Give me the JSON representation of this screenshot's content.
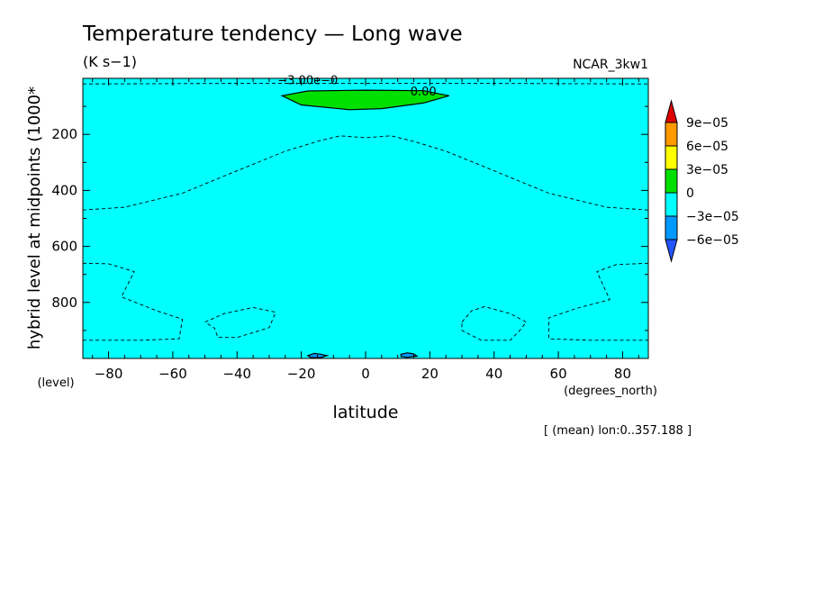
{
  "chart_data": {
    "type": "heatmap",
    "title": "Temperature tendency — Long wave",
    "units": "(K s−1)",
    "dataset": "NCAR_3kw1",
    "xlabel": "latitude",
    "x_units": "(degrees_north)",
    "ylabel": "hybrid level at midpoints (1000*",
    "y_units": "(level)",
    "footnote": "[ (mean) lon:0..357.188 ]",
    "xlim": [
      -88,
      88
    ],
    "ylim": [
      1000,
      0
    ],
    "y_reversed": true,
    "x_ticks": [
      "−80",
      "−60",
      "−40",
      "−20",
      "0",
      "20",
      "40",
      "60",
      "80"
    ],
    "x_tick_values": [
      -80,
      -60,
      -40,
      -20,
      0,
      20,
      40,
      60,
      80
    ],
    "y_ticks": [
      "200",
      "400",
      "600",
      "800"
    ],
    "y_tick_values": [
      200,
      400,
      600,
      800
    ],
    "contour_labels": [
      {
        "text": "−3.00e−0",
        "x": -18,
        "y": 5
      },
      {
        "text": "0.00",
        "x": 18,
        "y": 45
      }
    ],
    "colorbar": {
      "labels": [
        "9e−05",
        "6e−05",
        "3e−05",
        "0",
        "−3e−05",
        "−6e−05"
      ],
      "colors": [
        "#e00000",
        "#ff9900",
        "#ffff00",
        "#00e000",
        "#00ffff",
        "#0099ff",
        "#2255ff"
      ]
    },
    "background_color": "#00ffff",
    "regions": [
      {
        "name": "positive-0-to-3e-05",
        "color": "#00e000",
        "points": [
          [
            -26,
            62
          ],
          [
            -18,
            45
          ],
          [
            0,
            42
          ],
          [
            18,
            44
          ],
          [
            26,
            62
          ],
          [
            18,
            88
          ],
          [
            5,
            108
          ],
          [
            -5,
            112
          ],
          [
            -20,
            95
          ]
        ]
      },
      {
        "name": "negative-minus3e-05-to-minus6e-05-a",
        "color": "#0099ff",
        "points": [
          [
            -18,
            990
          ],
          [
            -16,
            982
          ],
          [
            -14,
            985
          ],
          [
            -12,
            990
          ],
          [
            -14,
            997
          ],
          [
            -17,
            997
          ]
        ]
      },
      {
        "name": "negative-minus3e-05-to-minus6e-05-b",
        "color": "#0099ff",
        "points": [
          [
            11,
            985
          ],
          [
            13,
            980
          ],
          [
            15,
            984
          ],
          [
            16,
            992
          ],
          [
            13,
            996
          ],
          [
            11,
            993
          ]
        ]
      }
    ],
    "dashed_contours": [
      {
        "name": "near-top-negative-contour",
        "points": [
          [
            -88,
            20
          ],
          [
            -40,
            18
          ],
          [
            0,
            18
          ],
          [
            40,
            18
          ],
          [
            88,
            20
          ]
        ]
      },
      {
        "name": "upper-negative-contour",
        "points": [
          [
            -88,
            470
          ],
          [
            -75,
            460
          ],
          [
            -57,
            410
          ],
          [
            -40,
            330
          ],
          [
            -25,
            260
          ],
          [
            -15,
            225
          ],
          [
            -8,
            205
          ],
          [
            0,
            212
          ],
          [
            8,
            205
          ],
          [
            15,
            225
          ],
          [
            25,
            260
          ],
          [
            40,
            330
          ],
          [
            57,
            410
          ],
          [
            75,
            460
          ],
          [
            88,
            470
          ]
        ]
      },
      {
        "name": "left-lower-contour",
        "points": [
          [
            -88,
            660
          ],
          [
            -80,
            662
          ],
          [
            -72,
            690
          ],
          [
            -76,
            780
          ],
          [
            -65,
            830
          ],
          [
            -57,
            860
          ],
          [
            -58,
            930
          ],
          [
            -70,
            935
          ],
          [
            -88,
            935
          ]
        ]
      },
      {
        "name": "left-inner-loop",
        "points": [
          [
            -50,
            870
          ],
          [
            -44,
            840
          ],
          [
            -35,
            818
          ],
          [
            -28,
            835
          ],
          [
            -30,
            890
          ],
          [
            -40,
            925
          ],
          [
            -46,
            925
          ],
          [
            -47,
            892
          ],
          [
            -50,
            870
          ]
        ]
      },
      {
        "name": "right-inner-loop",
        "points": [
          [
            30,
            870
          ],
          [
            33,
            830
          ],
          [
            37,
            815
          ],
          [
            45,
            840
          ],
          [
            50,
            870
          ],
          [
            48,
            900
          ],
          [
            45,
            935
          ],
          [
            36,
            935
          ],
          [
            30,
            900
          ],
          [
            30,
            870
          ]
        ]
      },
      {
        "name": "right-lower-contour",
        "points": [
          [
            88,
            660
          ],
          [
            78,
            665
          ],
          [
            72,
            690
          ],
          [
            76,
            790
          ],
          [
            66,
            820
          ],
          [
            57,
            855
          ],
          [
            57,
            930
          ],
          [
            70,
            935
          ],
          [
            88,
            935
          ]
        ]
      }
    ]
  }
}
